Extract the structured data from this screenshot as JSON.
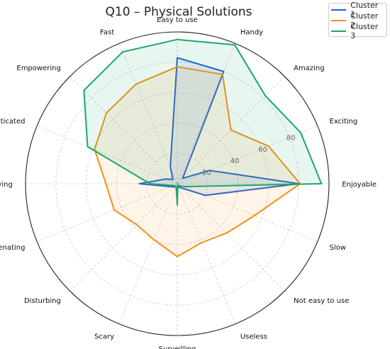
{
  "chart_data": {
    "type": "radar",
    "title": "Q10 – Physical Solutions",
    "axes": [
      "Easy to use",
      "Handy",
      "Amazing",
      "Exciting",
      "Enjoyable",
      "Slow",
      "Not easy to use",
      "Useless",
      "Surveilling",
      "Scary",
      "Disturbing",
      "Alienating",
      "Annoying",
      "Sophisticated",
      "Empowering",
      "Fast"
    ],
    "radial_ticks": [
      20,
      40,
      60,
      80
    ],
    "rlim": [
      0,
      100
    ],
    "grid": true,
    "legend_position": "top-right",
    "series": [
      {
        "name": "Cluster 1",
        "color": "#1f5fd6",
        "values": [
          83,
          80,
          5,
          23,
          80,
          20,
          4,
          2,
          3,
          2,
          3,
          5,
          25,
          8,
          4,
          12
        ]
      },
      {
        "name": "Cluster 2",
        "color": "#f39016",
        "values": [
          77,
          78,
          50,
          65,
          81,
          55,
          46,
          42,
          48,
          40,
          38,
          45,
          47,
          59,
          66,
          71
        ]
      },
      {
        "name": "Cluster 3",
        "color": "#1aa86a",
        "values": [
          95,
          99,
          82,
          88,
          95,
          5,
          2,
          1,
          14,
          2,
          2,
          3,
          18,
          64,
          87,
          94
        ]
      }
    ]
  }
}
